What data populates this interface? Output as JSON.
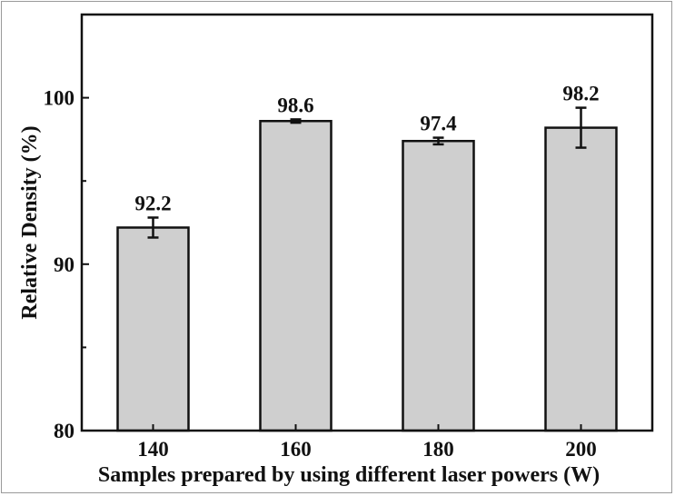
{
  "chart_data": {
    "type": "bar",
    "categories": [
      "140",
      "160",
      "180",
      "200"
    ],
    "values": [
      92.2,
      98.6,
      97.4,
      98.2
    ],
    "errors": [
      0.6,
      0.1,
      0.2,
      1.2
    ],
    "data_labels": [
      "92.2",
      "98.6",
      "97.4",
      "98.2"
    ],
    "title": "",
    "xlabel": "Samples prepared by using different laser powers (W)",
    "ylabel": "Relative Density (%)",
    "ylim": [
      80,
      105
    ],
    "yticks": [
      80,
      90,
      100
    ],
    "ytick_labels": [
      "80",
      "90",
      "100"
    ],
    "grid": false,
    "legend": "none",
    "colors": {
      "bar_fill": "#cfcfcf",
      "bar_stroke": "#111111",
      "axis": "#111111",
      "frame": "#9a9a9a"
    }
  }
}
